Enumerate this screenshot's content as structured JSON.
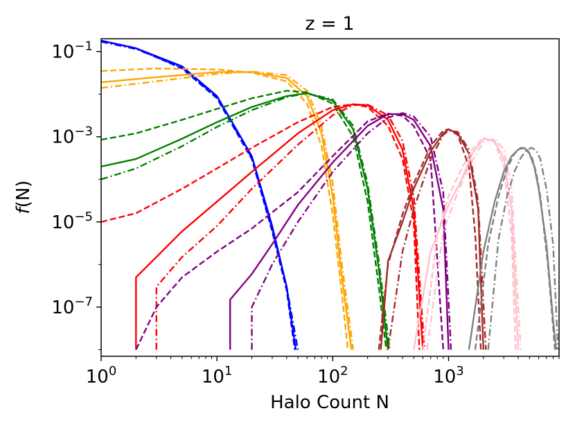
{
  "chart_data": {
    "type": "line",
    "title": "z = 1",
    "xlabel": "Halo Count N",
    "ylabel": "f(N)",
    "xscale": "log",
    "yscale": "log",
    "xlim": [
      1,
      9000
    ],
    "ylim": [
      7e-09,
      0.2
    ],
    "grid": false,
    "legend": "none",
    "x_ticks": [
      {
        "value": 1,
        "base": "10",
        "exp": "0"
      },
      {
        "value": 10,
        "base": "10",
        "exp": "1"
      },
      {
        "value": 100,
        "base": "10",
        "exp": "2"
      },
      {
        "value": 1000,
        "base": "10",
        "exp": "3"
      }
    ],
    "y_ticks": [
      {
        "value": 0.1,
        "base": "10",
        "exp": "−1"
      },
      {
        "value": 0.001,
        "base": "10",
        "exp": "−3"
      },
      {
        "value": 1e-05,
        "base": "10",
        "exp": "−5"
      },
      {
        "value": 1e-07,
        "base": "10",
        "exp": "−7"
      }
    ],
    "series": [
      {
        "color": "#0000ff",
        "style": "solid",
        "x": [
          1,
          2,
          5,
          10,
          20,
          30,
          40,
          48
        ],
        "y": [
          0.18,
          0.12,
          0.045,
          0.009,
          0.00035,
          8e-06,
          3e-07,
          1e-08
        ]
      },
      {
        "color": "#0000ff",
        "style": "dashed",
        "x": [
          1,
          2,
          5,
          10,
          20,
          30,
          40,
          47
        ],
        "y": [
          0.18,
          0.12,
          0.04,
          0.008,
          0.0003,
          6e-06,
          2.5e-07,
          1e-08
        ]
      },
      {
        "color": "#0000ff",
        "style": "dashdot",
        "x": [
          1,
          2,
          5,
          10,
          20,
          30,
          40,
          50
        ],
        "y": [
          0.17,
          0.115,
          0.042,
          0.0085,
          0.00032,
          7e-06,
          3e-07,
          1e-08
        ]
      },
      {
        "color": "#ffa500",
        "style": "solid",
        "x": [
          1,
          3,
          10,
          20,
          40,
          60,
          80,
          100,
          120,
          145
        ],
        "y": [
          0.019,
          0.025,
          0.033,
          0.033,
          0.024,
          0.009,
          0.0012,
          4e-05,
          5e-07,
          1e-08
        ]
      },
      {
        "color": "#ffa500",
        "style": "dashed",
        "x": [
          1,
          3,
          10,
          20,
          40,
          60,
          80,
          100,
          120,
          135
        ],
        "y": [
          0.035,
          0.04,
          0.038,
          0.032,
          0.02,
          0.006,
          0.0006,
          1.5e-05,
          2e-07,
          1e-08
        ]
      },
      {
        "color": "#ffa500",
        "style": "dashdot",
        "x": [
          1,
          3,
          10,
          20,
          40,
          60,
          80,
          100,
          120,
          150
        ],
        "y": [
          0.014,
          0.02,
          0.03,
          0.034,
          0.028,
          0.012,
          0.0018,
          8e-05,
          1e-06,
          1e-08
        ]
      },
      {
        "color": "#008000",
        "style": "solid",
        "x": [
          1,
          2,
          5,
          10,
          20,
          40,
          60,
          100,
          150,
          200,
          250,
          300
        ],
        "y": [
          0.0002,
          0.0003,
          0.0009,
          0.0022,
          0.005,
          0.009,
          0.0105,
          0.007,
          0.0015,
          6e-05,
          8e-07,
          1e-08
        ]
      },
      {
        "color": "#008000",
        "style": "dashed",
        "x": [
          1,
          2,
          5,
          10,
          20,
          40,
          60,
          100,
          150,
          200,
          250,
          290
        ],
        "y": [
          0.00085,
          0.0012,
          0.0025,
          0.0045,
          0.008,
          0.012,
          0.011,
          0.006,
          0.001,
          3e-05,
          3e-07,
          1e-08
        ]
      },
      {
        "color": "#008000",
        "style": "dashdot",
        "x": [
          1,
          2,
          5,
          10,
          20,
          40,
          60,
          100,
          150,
          200,
          250,
          310
        ],
        "y": [
          0.0001,
          0.00018,
          0.0006,
          0.0017,
          0.0042,
          0.0085,
          0.0105,
          0.0075,
          0.0018,
          8e-05,
          1.2e-06,
          1e-08
        ]
      },
      {
        "color": "#ff0000",
        "style": "solid",
        "x": [
          2,
          2,
          3,
          5,
          10,
          20,
          50,
          100,
          150,
          200,
          300,
          400,
          500,
          600
        ],
        "y": [
          1e-08,
          5e-07,
          1.5e-06,
          6e-06,
          3e-05,
          0.00015,
          0.0012,
          0.0042,
          0.0058,
          0.0055,
          0.0025,
          0.0005,
          2e-05,
          1e-08
        ]
      },
      {
        "color": "#ff0000",
        "style": "dashed",
        "x": [
          1,
          2,
          5,
          10,
          20,
          50,
          100,
          150,
          200,
          300,
          400,
          500,
          560
        ],
        "y": [
          1e-05,
          1.6e-05,
          6e-05,
          0.00018,
          0.00055,
          0.0022,
          0.005,
          0.0058,
          0.005,
          0.0018,
          0.0003,
          1e-05,
          1e-08
        ]
      },
      {
        "color": "#ff0000",
        "style": "dashdot",
        "x": [
          3,
          3,
          5,
          10,
          20,
          50,
          100,
          150,
          200,
          300,
          400,
          500,
          620
        ],
        "y": [
          1e-08,
          3e-07,
          1.5e-06,
          8e-06,
          6e-05,
          0.00065,
          0.0032,
          0.0055,
          0.0057,
          0.0032,
          0.0008,
          4e-05,
          1e-08
        ]
      },
      {
        "color": "#800080",
        "style": "solid",
        "x": [
          13,
          13,
          20,
          30,
          50,
          100,
          200,
          300,
          400,
          500,
          700,
          900,
          1000
        ],
        "y": [
          1e-08,
          1.5e-07,
          6e-07,
          3e-06,
          2.5e-05,
          0.00025,
          0.0018,
          0.0034,
          0.0034,
          0.0025,
          0.0006,
          2e-05,
          1e-08
        ]
      },
      {
        "color": "#800080",
        "style": "dashed",
        "x": [
          2,
          3,
          5,
          10,
          20,
          50,
          100,
          200,
          300,
          400,
          500,
          700,
          900
        ],
        "y": [
          1e-08,
          1e-07,
          5e-07,
          2e-06,
          7e-06,
          5e-05,
          0.00035,
          0.0023,
          0.0035,
          0.0031,
          0.0018,
          0.0003,
          1e-08
        ]
      },
      {
        "color": "#800080",
        "style": "dashdot",
        "x": [
          20,
          20,
          30,
          50,
          100,
          200,
          300,
          400,
          500,
          700,
          900,
          1050
        ],
        "y": [
          1e-08,
          1e-07,
          1e-06,
          1e-05,
          0.00015,
          0.0012,
          0.0028,
          0.0036,
          0.003,
          0.001,
          5e-05,
          1e-08
        ]
      },
      {
        "color": "#a52a2a",
        "style": "solid",
        "x": [
          260,
          300,
          400,
          500,
          700,
          900,
          1000,
          1200,
          1500,
          1800,
          2000
        ],
        "y": [
          1e-08,
          1.2e-06,
          1e-05,
          6e-05,
          0.00045,
          0.0012,
          0.0015,
          0.0012,
          0.0004,
          2e-05,
          1e-08
        ]
      },
      {
        "color": "#a52a2a",
        "style": "dashed",
        "x": [
          250,
          300,
          400,
          500,
          700,
          900,
          1000,
          1200,
          1500,
          1700,
          1900
        ],
        "y": [
          1e-08,
          1e-06,
          1.5e-05,
          8e-05,
          0.0006,
          0.0014,
          0.0015,
          0.0011,
          0.0002,
          5e-06,
          1e-08
        ]
      },
      {
        "color": "#a52a2a",
        "style": "dashdot",
        "x": [
          300,
          400,
          500,
          700,
          900,
          1000,
          1200,
          1500,
          1800,
          2100
        ],
        "y": [
          1e-08,
          2e-06,
          2e-05,
          0.0003,
          0.0011,
          0.0014,
          0.0013,
          0.0005,
          3e-05,
          1e-08
        ]
      },
      {
        "color": "#ffc0cb",
        "style": "solid",
        "x": [
          500,
          700,
          1000,
          1300,
          1600,
          2000,
          2500,
          3000,
          3500,
          4000
        ],
        "y": [
          1e-08,
          2e-06,
          2.5e-05,
          0.0001,
          0.0004,
          0.0009,
          0.0008,
          0.0003,
          2e-05,
          1e-08
        ]
      },
      {
        "color": "#ffc0cb",
        "style": "dashed",
        "x": [
          600,
          800,
          1000,
          1300,
          1600,
          2000,
          2500,
          3000,
          3500,
          3800
        ],
        "y": [
          1e-08,
          5e-06,
          4e-05,
          0.00018,
          0.0005,
          0.00095,
          0.00075,
          0.0002,
          5e-06,
          1e-08
        ]
      },
      {
        "color": "#ffc0cb",
        "style": "dashdot",
        "x": [
          650,
          900,
          1200,
          1500,
          2000,
          2500,
          3000,
          3500,
          4200
        ],
        "y": [
          1e-08,
          6e-06,
          5e-05,
          0.0002,
          0.00075,
          0.0009,
          0.0005,
          6e-05,
          1e-08
        ]
      },
      {
        "color": "#808080",
        "style": "solid",
        "x": [
          1500,
          2000,
          2500,
          3000,
          3500,
          4000,
          4500,
          5000,
          5500,
          6000,
          7000,
          8000,
          8500
        ],
        "y": [
          1e-08,
          2e-06,
          3e-05,
          0.00015,
          0.00035,
          0.0005,
          0.00055,
          0.0004,
          0.0002,
          6e-05,
          3e-06,
          5e-08,
          1e-08
        ]
      },
      {
        "color": "#808080",
        "style": "dashed",
        "x": [
          1700,
          2200,
          2700,
          3200,
          3700,
          4200,
          4700,
          5200,
          5700,
          6200,
          7200,
          8300
        ],
        "y": [
          1e-08,
          3e-06,
          4e-05,
          0.00018,
          0.0004,
          0.00055,
          0.00052,
          0.00035,
          0.00015,
          4e-05,
          1e-06,
          1e-08
        ]
      },
      {
        "color": "#808080",
        "style": "dashdot",
        "x": [
          2200,
          2700,
          3200,
          3700,
          4200,
          4700,
          5200,
          5700,
          6200,
          7000,
          8000,
          8800
        ],
        "y": [
          1e-08,
          4e-06,
          4e-05,
          0.00015,
          0.00032,
          0.00048,
          0.00055,
          0.00048,
          0.0003,
          6e-05,
          3e-06,
          1e-08
        ]
      }
    ]
  }
}
